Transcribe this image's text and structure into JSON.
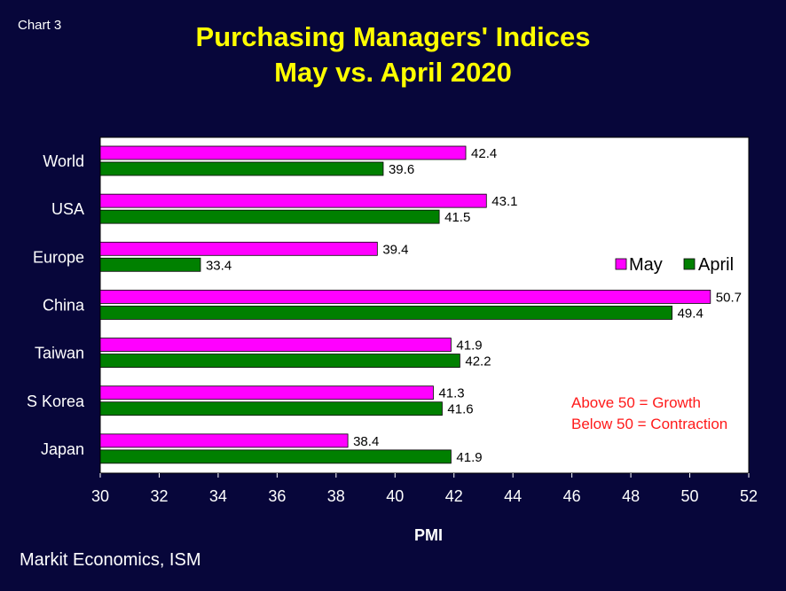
{
  "chart_tag": "Chart 3",
  "footer": {
    "source": "Markit Economics, ISM"
  },
  "colors": {
    "background": "#07063a",
    "title": "#ffff00",
    "plot_area": "#ffffff",
    "may": "#ff00ff",
    "april": "#008000",
    "note": "#ff1a1a"
  },
  "chart_data": {
    "type": "bar",
    "orientation": "horizontal",
    "title": "Purchasing Managers' Indices",
    "subtitle": "May vs. April 2020",
    "categories": [
      "World",
      "USA",
      "Europe",
      "China",
      "Taiwan",
      "S Korea",
      "Japan"
    ],
    "series": [
      {
        "name": "May",
        "color": "#ff00ff",
        "values": [
          42.4,
          43.1,
          39.4,
          50.7,
          41.9,
          41.3,
          38.4
        ]
      },
      {
        "name": "April",
        "color": "#008000",
        "values": [
          39.6,
          41.5,
          33.4,
          49.4,
          42.2,
          41.6,
          41.9
        ]
      }
    ],
    "xlabel": "PMI",
    "ylabel": "",
    "xlim": [
      30,
      52
    ],
    "xticks": [
      30,
      32,
      34,
      36,
      38,
      40,
      42,
      44,
      46,
      48,
      50,
      52
    ],
    "grid": false,
    "legend_position": "right",
    "annotations": [
      "Above 50 = Growth",
      "Below 50 = Contraction"
    ]
  }
}
